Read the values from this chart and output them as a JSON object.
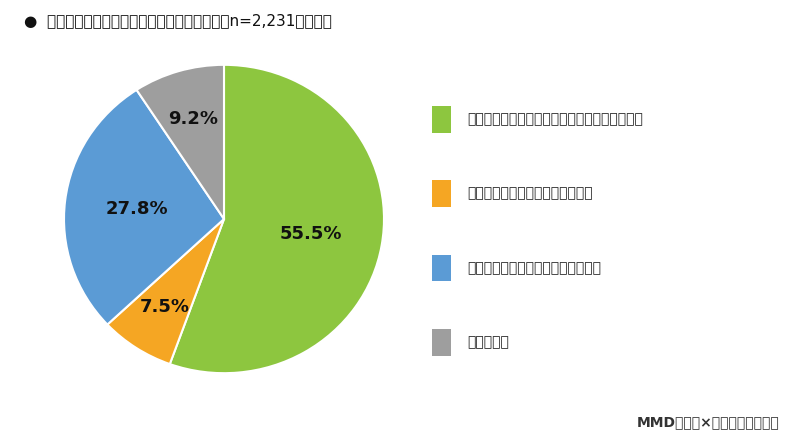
{
  "title": "顔写真付きのマイナンバーカードの所有率（n=2,231、単数）",
  "title_bullet": "●",
  "slices": [
    55.5,
    7.5,
    27.8,
    9.2
  ],
  "legend_labels": [
    "顔写真付きのマイナンバーカードを持っている",
    "現在、受け取りの申請をしている",
    "マイナンバーカードを持っていない",
    "わからない"
  ],
  "colors": [
    "#8dc63f",
    "#f5a623",
    "#5b9bd5",
    "#9e9e9e"
  ],
  "pct_labels": [
    "55.5%",
    "7.5%",
    "27.8%",
    "9.2%"
  ],
  "start_angle": 90,
  "footer": "MMD研究所×スマートアンサー",
  "bg_color": "#ffffff",
  "title_fontsize": 11,
  "legend_fontsize": 10,
  "pct_fontsize": 13,
  "footer_fontsize": 10
}
